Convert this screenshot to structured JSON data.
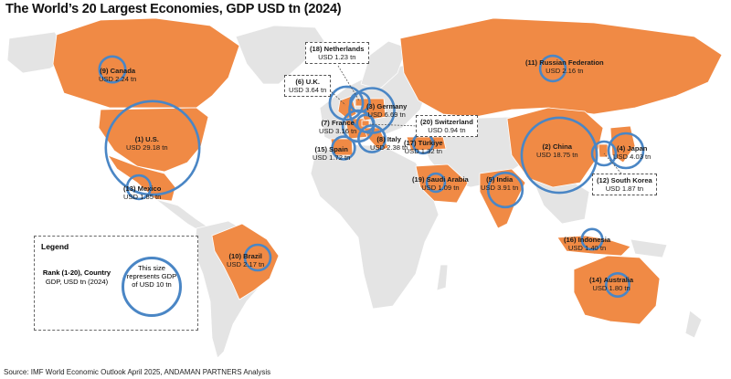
{
  "title": "The World’s 20 Largest Economies, GDP USD tn (2024)",
  "source": "Source: IMF World Economic Outlook April 2025, ANDAMAN PARTNERS Analysis",
  "colors": {
    "highlight": "#f08a45",
    "land": "#e4e4e4",
    "circle": "#4a86c5",
    "background": "#ffffff"
  },
  "legend": {
    "title": "Legend",
    "rank_line": "Rank (1-20), Country",
    "value_line": "GDP, USD tn (2024)",
    "circle_text": "This size represents GDP of USD 10 tn"
  },
  "economies": [
    {
      "rank": "(1)",
      "country": "U.S.",
      "gdp": "USD 29.18 tn",
      "value": 29.18
    },
    {
      "rank": "(2)",
      "country": "China",
      "gdp": "USD 18.75 tn",
      "value": 18.75
    },
    {
      "rank": "(3)",
      "country": "Germany",
      "gdp": "USD 6.69 tn",
      "value": 6.69
    },
    {
      "rank": "(4)",
      "country": "Japan",
      "gdp": "USD 4.03 tn",
      "value": 4.03
    },
    {
      "rank": "(5)",
      "country": "India",
      "gdp": "USD 3.91 tn",
      "value": 3.91
    },
    {
      "rank": "(6)",
      "country": "U.K.",
      "gdp": "USD 3.64 tn",
      "value": 3.64
    },
    {
      "rank": "(7)",
      "country": "France",
      "gdp": "USD 3.16 tn",
      "value": 3.16
    },
    {
      "rank": "(8)",
      "country": "Italy",
      "gdp": "USD 2.38 tn",
      "value": 2.38
    },
    {
      "rank": "(9)",
      "country": "Canada",
      "gdp": "USD 2.24 tn",
      "value": 2.24
    },
    {
      "rank": "(10)",
      "country": "Brazil",
      "gdp": "USD 2.17 tn",
      "value": 2.17
    },
    {
      "rank": "(11)",
      "country": "Russian Federation",
      "gdp": "USD 2.16 tn",
      "value": 2.16
    },
    {
      "rank": "(12)",
      "country": "South Korea",
      "gdp": "USD 1.87 tn",
      "value": 1.87
    },
    {
      "rank": "(13)",
      "country": "Mexico",
      "gdp": "USD 1.85 tn",
      "value": 1.85
    },
    {
      "rank": "(14)",
      "country": "Australia",
      "gdp": "USD 1.80 tn",
      "value": 1.8
    },
    {
      "rank": "(15)",
      "country": "Spain",
      "gdp": "USD 1.72 tn",
      "value": 1.72
    },
    {
      "rank": "(16)",
      "country": "Indonesia",
      "gdp": "USD 1.40 tn",
      "value": 1.4
    },
    {
      "rank": "(17)",
      "country": "Türkiye",
      "gdp": "USD 1.32 tn",
      "value": 1.32
    },
    {
      "rank": "(18)",
      "country": "Netherlands",
      "gdp": "USD 1.23 tn",
      "value": 1.23
    },
    {
      "rank": "(19)",
      "country": "Saudi Arabia",
      "gdp": "USD 1.09 tn",
      "value": 1.09
    },
    {
      "rank": "(20)",
      "country": "Switzerland",
      "gdp": "USD 0.94 tn",
      "value": 0.94
    }
  ]
}
